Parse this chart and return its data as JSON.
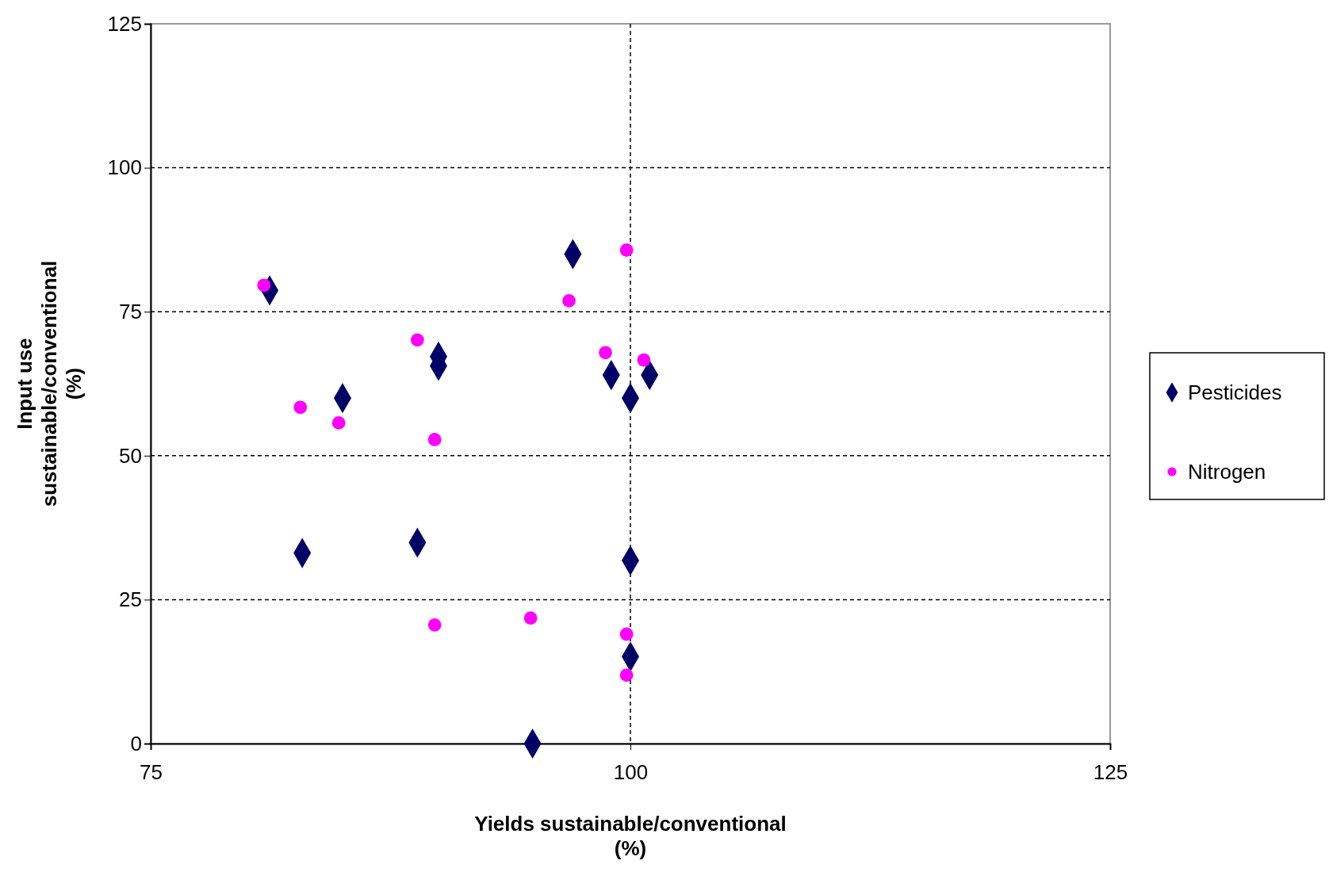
{
  "chart_data": {
    "type": "scatter",
    "xlabel": "Yields sustainable/conventional\n(%)",
    "ylabel": "Input use\nsustainable/conventional\n(%)",
    "xlim": [
      75,
      125
    ],
    "xticks": [
      75,
      100,
      125
    ],
    "ylim": [
      0,
      125
    ],
    "yticks": [
      0,
      25,
      50,
      75,
      100,
      125
    ],
    "grid": true,
    "legend": "right",
    "series": [
      {
        "name": "Pesticides",
        "color": "#000066",
        "marker": "diamond",
        "x": [
          81.2,
          97,
          90,
          90,
          85,
          99,
          101,
          100,
          82.9,
          88.9,
          100,
          100,
          94.9
        ],
        "values": [
          78.7,
          85,
          67.2,
          65.6,
          60,
          64,
          64,
          60,
          33.1,
          34.9,
          31.8,
          15.1,
          0
        ]
      },
      {
        "name": "Nitrogen",
        "color": "#ff00ff",
        "marker": "circle",
        "x": [
          80.9,
          82.8,
          84.8,
          88.9,
          89.8,
          89.8,
          94.8,
          96.8,
          99.8,
          98.7,
          100.7,
          99.8,
          99.8
        ],
        "values": [
          79.6,
          58.4,
          55.7,
          70.1,
          52.8,
          20.6,
          21.8,
          76.9,
          85.7,
          67.9,
          66.6,
          19,
          11.9
        ]
      }
    ]
  }
}
